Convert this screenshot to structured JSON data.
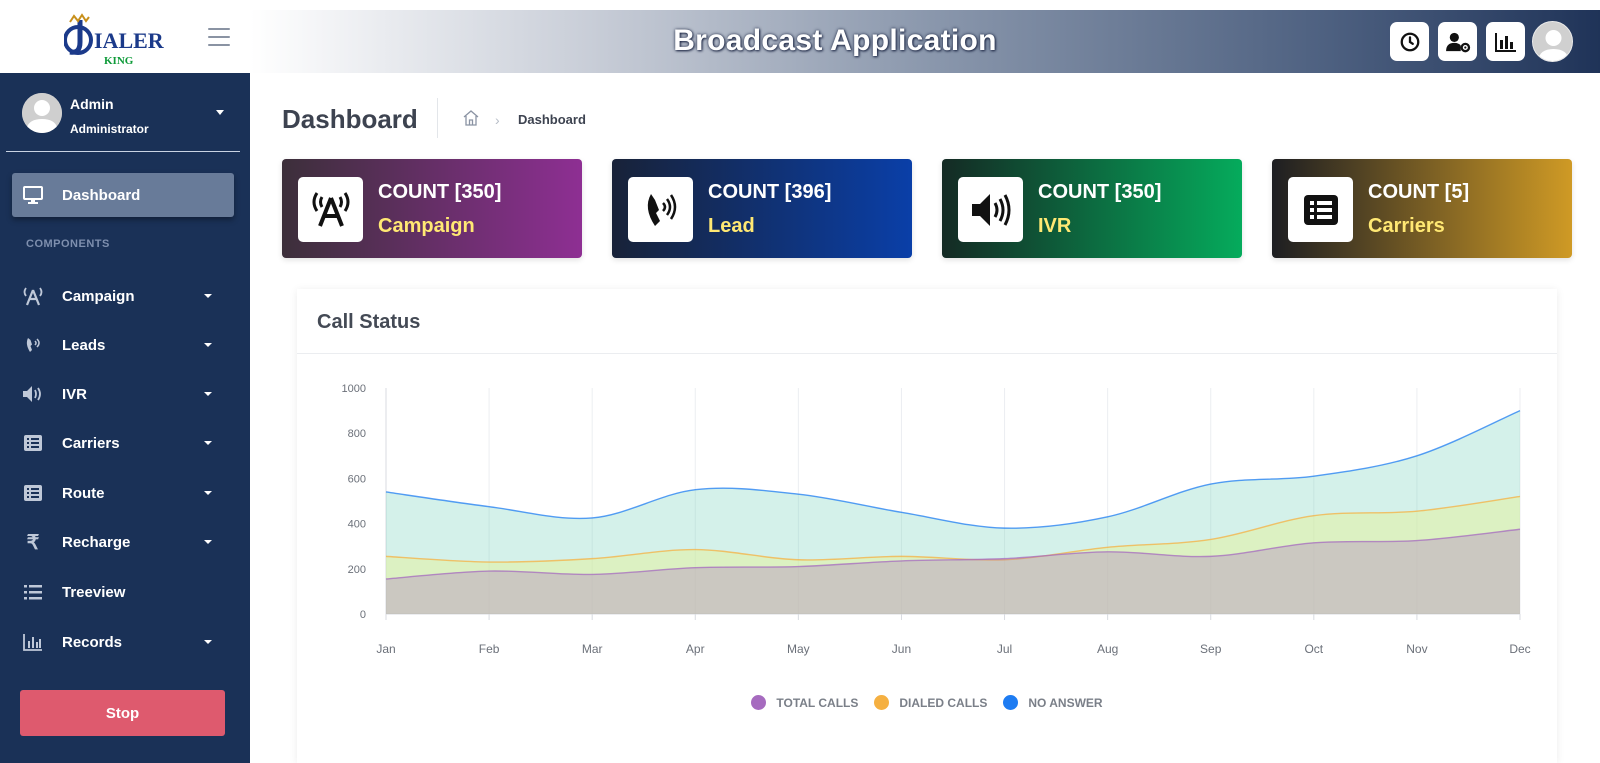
{
  "brand": {
    "logo_text": "DIALER KING",
    "logo_icon": "dialer-king-logo"
  },
  "header": {
    "title": "Broadcast Application",
    "icons": [
      "clock-icon",
      "user-cog-icon",
      "bar-chart-icon"
    ]
  },
  "user": {
    "name": "Admin",
    "role": "Administrator"
  },
  "sidebar": {
    "active": {
      "label": "Dashboard",
      "icon": "monitor-icon"
    },
    "section": "COMPONENTS",
    "items": [
      {
        "label": "Campaign",
        "icon": "antenna-icon",
        "has_caret": true
      },
      {
        "label": "Leads",
        "icon": "phone-ring-icon",
        "has_caret": true
      },
      {
        "label": "IVR",
        "icon": "speaker-icon",
        "has_caret": true
      },
      {
        "label": "Carriers",
        "icon": "list-box-icon",
        "has_caret": true
      },
      {
        "label": "Route",
        "icon": "list-box-icon",
        "has_caret": true
      },
      {
        "label": "Recharge",
        "icon": "rupee-icon",
        "has_caret": true
      },
      {
        "label": "Treeview",
        "icon": "list-icon",
        "has_caret": false
      },
      {
        "label": "Records",
        "icon": "bar-chart-icon",
        "has_caret": true
      }
    ],
    "stop_label": "Stop"
  },
  "page": {
    "title": "Dashboard",
    "breadcrumb": "Dashboard",
    "breadcrumb_sep": "›"
  },
  "cards": [
    {
      "count": "COUNT [350]",
      "label": "Campaign",
      "icon": "antenna-icon",
      "gradient": [
        "#3c2f3a",
        "#8e2f93"
      ]
    },
    {
      "count": "COUNT [396]",
      "label": "Lead",
      "icon": "phone-ring-icon",
      "gradient": [
        "#182238",
        "#0a3fa8"
      ]
    },
    {
      "count": "COUNT [350]",
      "label": "IVR",
      "icon": "speaker-icon",
      "gradient": [
        "#142a24",
        "#05ab5c"
      ]
    },
    {
      "count": "COUNT [5]",
      "label": "Carriers",
      "icon": "list-box-icon",
      "gradient": [
        "#1d1e22",
        "#cf9a25"
      ]
    }
  ],
  "panel": {
    "title": "Call Status"
  },
  "chart_data": {
    "type": "area",
    "categories": [
      "Jan",
      "Feb",
      "Mar",
      "Apr",
      "May",
      "Jun",
      "Jul",
      "Aug",
      "Sep",
      "Oct",
      "Nov",
      "Dec"
    ],
    "ylim": [
      0,
      1000
    ],
    "yticks": [
      0,
      200,
      400,
      600,
      800,
      1000
    ],
    "grid": "vertical",
    "legend_position": "bottom",
    "series": [
      {
        "name": "TOTAL CALLS",
        "color": "#a66bbf",
        "values": [
          155,
          190,
          175,
          205,
          210,
          235,
          245,
          275,
          255,
          315,
          325,
          375
        ]
      },
      {
        "name": "DIALED CALLS",
        "color": "#f5b041",
        "values": [
          255,
          230,
          245,
          285,
          240,
          255,
          240,
          295,
          330,
          435,
          455,
          520
        ]
      },
      {
        "name": "NO ANSWER",
        "color": "#1e7cf2",
        "values": [
          540,
          475,
          425,
          550,
          530,
          450,
          380,
          430,
          575,
          610,
          700,
          900
        ]
      }
    ]
  }
}
